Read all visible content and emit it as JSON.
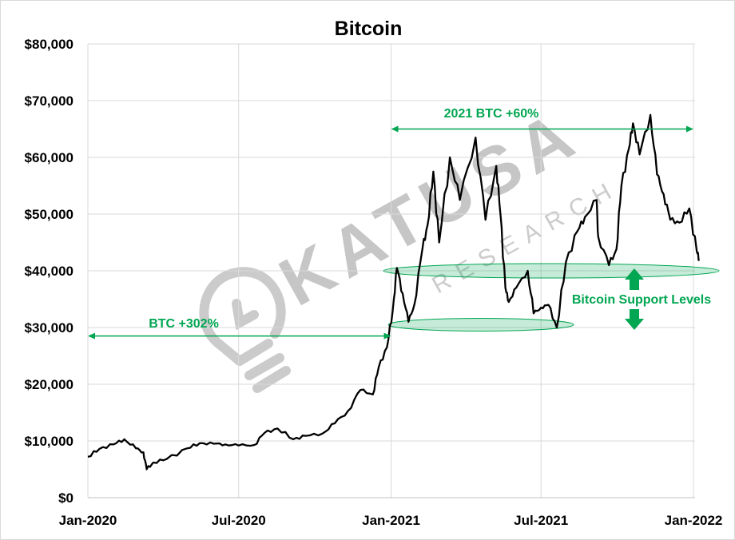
{
  "chart_data": {
    "type": "line",
    "title": "Bitcoin",
    "xlabel": "",
    "ylabel": "",
    "ylim": [
      0,
      80000
    ],
    "yticks": [
      {
        "value": 0,
        "label": "$0"
      },
      {
        "value": 10000,
        "label": "$10,000"
      },
      {
        "value": 20000,
        "label": "$20,000"
      },
      {
        "value": 30000,
        "label": "$30,000"
      },
      {
        "value": 40000,
        "label": "$40,000"
      },
      {
        "value": 50000,
        "label": "$50,000"
      },
      {
        "value": 60000,
        "label": "$60,000"
      },
      {
        "value": 70000,
        "label": "$70,000"
      },
      {
        "value": 80000,
        "label": "$80,000"
      }
    ],
    "xlim": [
      "2020-01-01",
      "2022-01-10"
    ],
    "xticks": [
      {
        "value": "2020-01-01",
        "label": "Jan-2020"
      },
      {
        "value": "2020-07-01",
        "label": "Jul-2020"
      },
      {
        "value": "2021-01-01",
        "label": "Jan-2021"
      },
      {
        "value": "2021-07-01",
        "label": "Jul-2021"
      },
      {
        "value": "2022-01-01",
        "label": "Jan-2022"
      }
    ],
    "grid": true,
    "series": [
      {
        "color": "#000000",
        "points": [
          [
            "2020-01-01",
            7200
          ],
          [
            "2020-01-15",
            8600
          ],
          [
            "2020-02-01",
            9400
          ],
          [
            "2020-02-14",
            10300
          ],
          [
            "2020-02-28",
            8700
          ],
          [
            "2020-03-08",
            8000
          ],
          [
            "2020-03-12",
            5000
          ],
          [
            "2020-03-20",
            6200
          ],
          [
            "2020-04-05",
            6800
          ],
          [
            "2020-04-30",
            8700
          ],
          [
            "2020-05-15",
            9600
          ],
          [
            "2020-06-01",
            9500
          ],
          [
            "2020-06-15",
            9400
          ],
          [
            "2020-07-01",
            9200
          ],
          [
            "2020-07-20",
            9300
          ],
          [
            "2020-08-01",
            11400
          ],
          [
            "2020-08-17",
            12200
          ],
          [
            "2020-09-05",
            10300
          ],
          [
            "2020-09-20",
            10900
          ],
          [
            "2020-10-10",
            11300
          ],
          [
            "2020-10-25",
            13100
          ],
          [
            "2020-11-10",
            15300
          ],
          [
            "2020-11-25",
            19000
          ],
          [
            "2020-12-10",
            18200
          ],
          [
            "2020-12-17",
            23000
          ],
          [
            "2020-12-27",
            26500
          ],
          [
            "2021-01-03",
            33000
          ],
          [
            "2021-01-08",
            40500
          ],
          [
            "2021-01-15",
            36000
          ],
          [
            "2021-01-22",
            31000
          ],
          [
            "2021-01-29",
            34000
          ],
          [
            "2021-02-08",
            44000
          ],
          [
            "2021-02-14",
            48000
          ],
          [
            "2021-02-21",
            57500
          ],
          [
            "2021-02-28",
            45000
          ],
          [
            "2021-03-13",
            60000
          ],
          [
            "2021-03-25",
            52500
          ],
          [
            "2021-04-13",
            63500
          ],
          [
            "2021-04-25",
            49000
          ],
          [
            "2021-05-08",
            58500
          ],
          [
            "2021-05-13",
            50000
          ],
          [
            "2021-05-19",
            37000
          ],
          [
            "2021-05-23",
            34500
          ],
          [
            "2021-06-01",
            37000
          ],
          [
            "2021-06-15",
            40000
          ],
          [
            "2021-06-22",
            32500
          ],
          [
            "2021-07-01",
            33500
          ],
          [
            "2021-07-10",
            34000
          ],
          [
            "2021-07-20",
            30000
          ],
          [
            "2021-07-31",
            41500
          ],
          [
            "2021-08-14",
            47000
          ],
          [
            "2021-08-23",
            49500
          ],
          [
            "2021-09-06",
            52500
          ],
          [
            "2021-09-08",
            46000
          ],
          [
            "2021-09-21",
            41000
          ],
          [
            "2021-09-30",
            43800
          ],
          [
            "2021-10-06",
            55000
          ],
          [
            "2021-10-15",
            61500
          ],
          [
            "2021-10-20",
            66000
          ],
          [
            "2021-10-28",
            60500
          ],
          [
            "2021-11-10",
            67500
          ],
          [
            "2021-11-18",
            57000
          ],
          [
            "2021-11-26",
            53500
          ],
          [
            "2021-12-04",
            49000
          ],
          [
            "2021-12-15",
            48500
          ],
          [
            "2021-12-27",
            51000
          ],
          [
            "2022-01-05",
            43500
          ],
          [
            "2022-01-08",
            42000
          ]
        ]
      }
    ],
    "annotations": {
      "range_2021": {
        "label": "2021 BTC +60%",
        "color": "#00a651",
        "x_start": "2021-01-01",
        "x_end": "2022-01-01",
        "y": 65000
      },
      "range_2020": {
        "label": "BTC +302%",
        "color": "#00a651",
        "x_start": "2020-01-01",
        "x_end": "2021-01-01",
        "y": 28500
      },
      "support_label": "Bitcoin Support Levels",
      "support_levels": [
        40000,
        30500
      ]
    },
    "watermark": {
      "name": "KATUSA",
      "sub": "RESEARCH"
    }
  }
}
